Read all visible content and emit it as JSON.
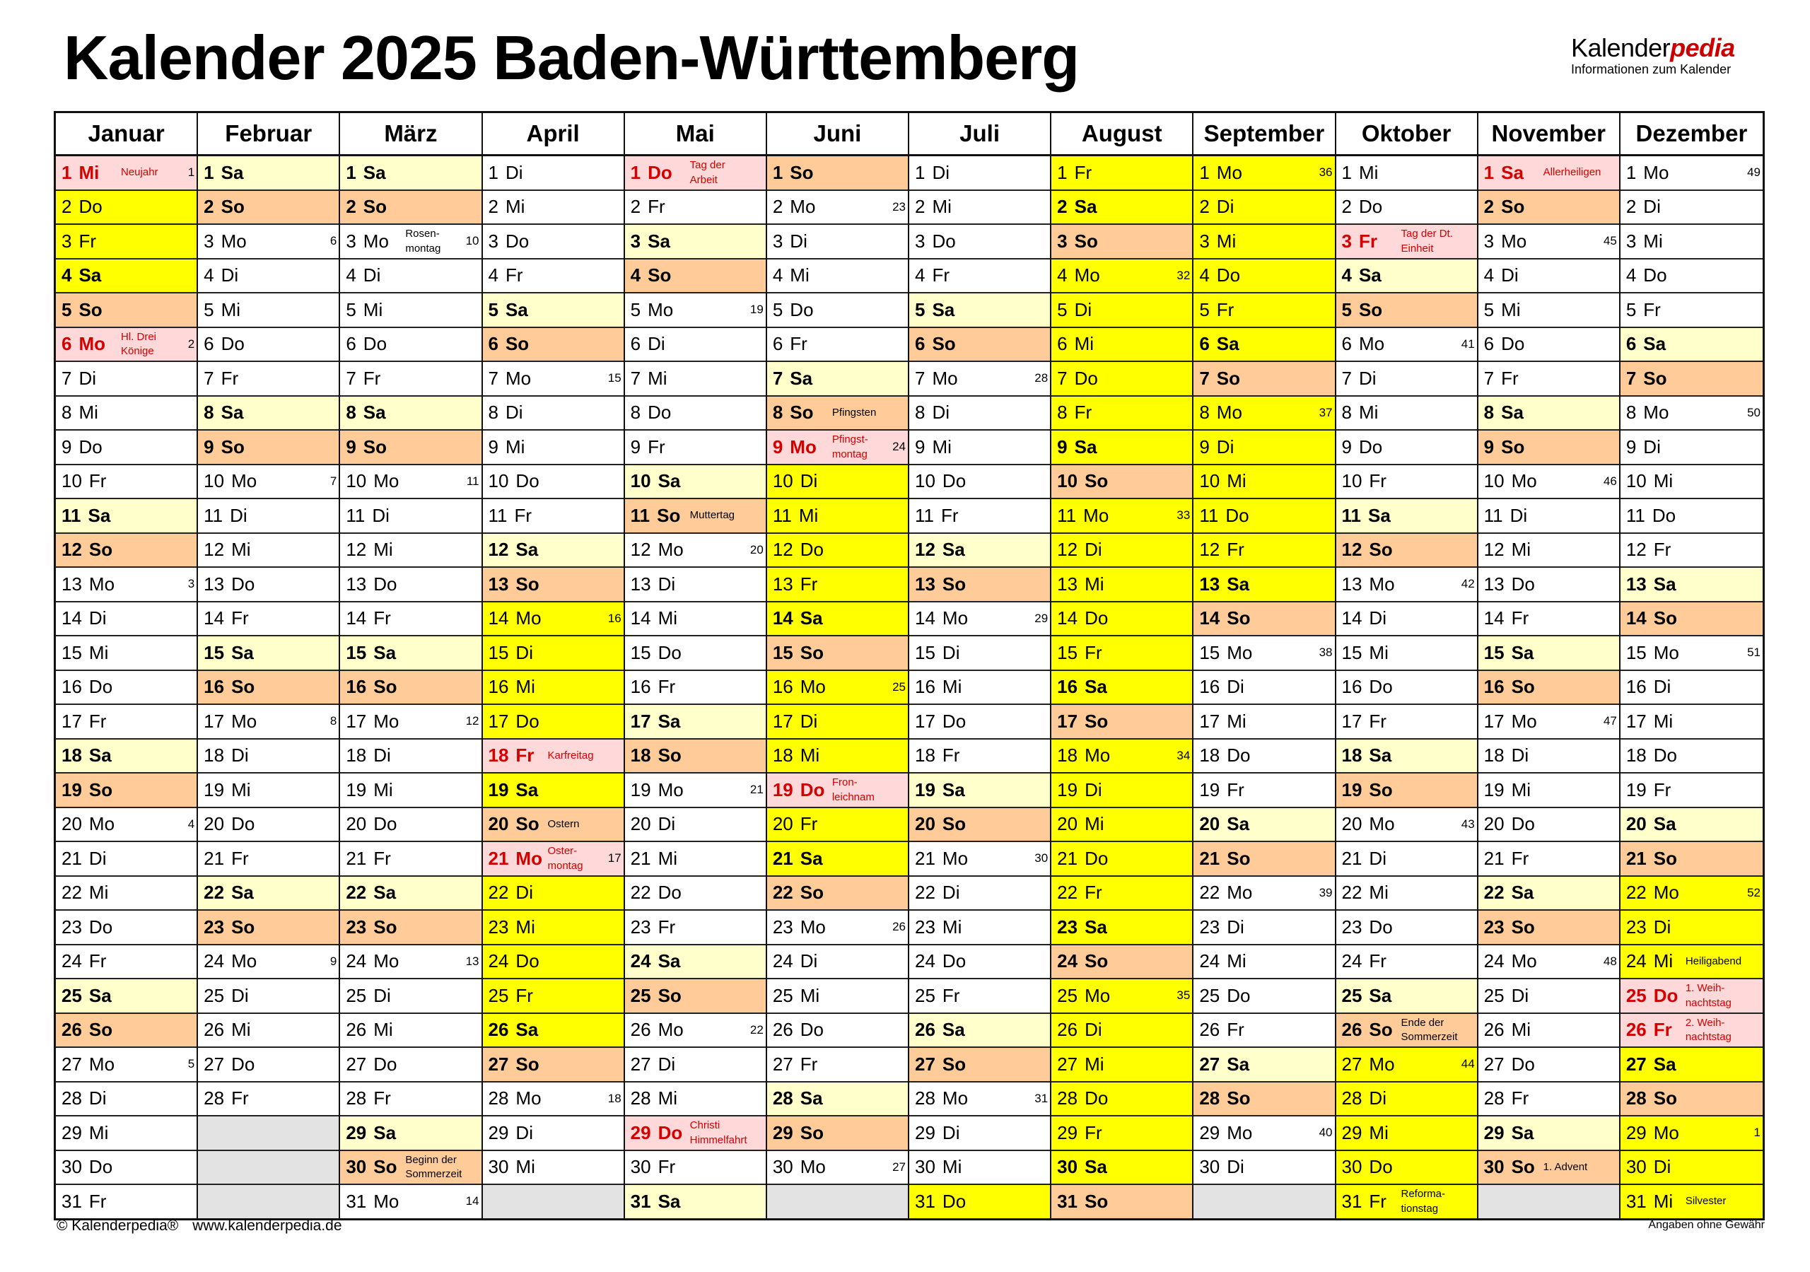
{
  "title": "Kalender 2025 Baden-Württemberg",
  "logo": {
    "main": "Kalender",
    "accent": "pedia",
    "subtitle": "Informationen zum Kalender"
  },
  "colors": {
    "weekday": "#ffffff",
    "saturday": "#ffffcc",
    "sunday": "#ffcc99",
    "holiday": "#ffd9d9",
    "holiday_text": "#d40000",
    "school_holiday": "#ffff00",
    "empty": "#e3e3e3"
  },
  "months": [
    {
      "name": "Januar",
      "days": [
        "1 Mi",
        "2 Do",
        "3 Fr",
        "4 Sa",
        "5 So",
        "6 Mo",
        "7 Di",
        "8 Mi",
        "9 Do",
        "10 Fr",
        "11 Sa",
        "12 So",
        "13 Mo",
        "14 Di",
        "15 Mi",
        "16 Do",
        "17 Fr",
        "18 Sa",
        "19 So",
        "20 Mo",
        "21 Di",
        "22 Mi",
        "23 Do",
        "24 Fr",
        "25 Sa",
        "26 So",
        "27 Mo",
        "28 Di",
        "29 Mi",
        "30 Do",
        "31 Fr"
      ],
      "kw": {
        "1": "1",
        "6": "2",
        "13": "3",
        "20": "4",
        "27": "5"
      },
      "notes": {
        "1": "Neujahr",
        "6": "Hl. Drei\nKönige"
      },
      "holidays": [
        1,
        6
      ],
      "vacation": [
        2,
        3,
        4
      ]
    },
    {
      "name": "Februar",
      "days": [
        "1 Sa",
        "2 So",
        "3 Mo",
        "4 Di",
        "5 Mi",
        "6 Do",
        "7 Fr",
        "8 Sa",
        "9 So",
        "10 Mo",
        "11 Di",
        "12 Mi",
        "13 Do",
        "14 Fr",
        "15 Sa",
        "16 So",
        "17 Mo",
        "18 Di",
        "19 Mi",
        "20 Do",
        "21 Fr",
        "22 Sa",
        "23 So",
        "24 Mo",
        "25 Di",
        "26 Mi",
        "27 Do",
        "28 Fr"
      ],
      "kw": {
        "3": "6",
        "10": "7",
        "17": "8",
        "24": "9"
      },
      "notes": {},
      "holidays": [],
      "vacation": []
    },
    {
      "name": "März",
      "days": [
        "1 Sa",
        "2 So",
        "3 Mo",
        "4 Di",
        "5 Mi",
        "6 Do",
        "7 Fr",
        "8 Sa",
        "9 So",
        "10 Mo",
        "11 Di",
        "12 Mi",
        "13 Do",
        "14 Fr",
        "15 Sa",
        "16 So",
        "17 Mo",
        "18 Di",
        "19 Mi",
        "20 Do",
        "21 Fr",
        "22 Sa",
        "23 So",
        "24 Mo",
        "25 Di",
        "26 Mi",
        "27 Do",
        "28 Fr",
        "29 Sa",
        "30 So",
        "31 Mo"
      ],
      "kw": {
        "3": "10",
        "10": "11",
        "17": "12",
        "24": "13",
        "31": "14"
      },
      "notes": {
        "3": "Rosen-\nmontag",
        "30": "Beginn der\nSommerzeit"
      },
      "holidays": [],
      "vacation": []
    },
    {
      "name": "April",
      "days": [
        "1 Di",
        "2 Mi",
        "3 Do",
        "4 Fr",
        "5 Sa",
        "6 So",
        "7 Mo",
        "8 Di",
        "9 Mi",
        "10 Do",
        "11 Fr",
        "12 Sa",
        "13 So",
        "14 Mo",
        "15 Di",
        "16 Mi",
        "17 Do",
        "18 Fr",
        "19 Sa",
        "20 So",
        "21 Mo",
        "22 Di",
        "23 Mi",
        "24 Do",
        "25 Fr",
        "26 Sa",
        "27 So",
        "28 Mo",
        "29 Di",
        "30 Mi"
      ],
      "kw": {
        "7": "15",
        "14": "16",
        "21": "17",
        "28": "18"
      },
      "notes": {
        "18": "Karfreitag",
        "20": "Ostern",
        "21": "Oster-\nmontag"
      },
      "holidays": [
        18,
        21
      ],
      "vacation": [
        14,
        15,
        16,
        17,
        19,
        20,
        22,
        23,
        24,
        25,
        26
      ]
    },
    {
      "name": "Mai",
      "days": [
        "1 Do",
        "2 Fr",
        "3 Sa",
        "4 So",
        "5 Mo",
        "6 Di",
        "7 Mi",
        "8 Do",
        "9 Fr",
        "10 Sa",
        "11 So",
        "12 Mo",
        "13 Di",
        "14 Mi",
        "15 Do",
        "16 Fr",
        "17 Sa",
        "18 So",
        "19 Mo",
        "20 Di",
        "21 Mi",
        "22 Do",
        "23 Fr",
        "24 Sa",
        "25 So",
        "26 Mo",
        "27 Di",
        "28 Mi",
        "29 Do",
        "30 Fr",
        "31 Sa"
      ],
      "kw": {
        "5": "19",
        "12": "20",
        "19": "21",
        "26": "22"
      },
      "notes": {
        "1": "Tag der\nArbeit",
        "11": "Muttertag",
        "29": "Christi\nHimmelfahrt"
      },
      "holidays": [
        1,
        29
      ],
      "vacation": []
    },
    {
      "name": "Juni",
      "days": [
        "1 So",
        "2 Mo",
        "3 Di",
        "4 Mi",
        "5 Do",
        "6 Fr",
        "7 Sa",
        "8 So",
        "9 Mo",
        "10 Di",
        "11 Mi",
        "12 Do",
        "13 Fr",
        "14 Sa",
        "15 So",
        "16 Mo",
        "17 Di",
        "18 Mi",
        "19 Do",
        "20 Fr",
        "21 Sa",
        "22 So",
        "23 Mo",
        "24 Di",
        "25 Mi",
        "26 Do",
        "27 Fr",
        "28 Sa",
        "29 So",
        "30 Mo"
      ],
      "kw": {
        "2": "23",
        "9": "24",
        "16": "25",
        "23": "26",
        "30": "27"
      },
      "notes": {
        "8": "Pfingsten",
        "9": "Pfingst-\nmontag",
        "19": "Fron-\nleichnam"
      },
      "holidays": [
        9,
        19
      ],
      "vacation": [
        10,
        11,
        12,
        13,
        14,
        15,
        16,
        17,
        18,
        20,
        21
      ]
    },
    {
      "name": "Juli",
      "days": [
        "1 Di",
        "2 Mi",
        "3 Do",
        "4 Fr",
        "5 Sa",
        "6 So",
        "7 Mo",
        "8 Di",
        "9 Mi",
        "10 Do",
        "11 Fr",
        "12 Sa",
        "13 So",
        "14 Mo",
        "15 Di",
        "16 Mi",
        "17 Do",
        "18 Fr",
        "19 Sa",
        "20 So",
        "21 Mo",
        "22 Di",
        "23 Mi",
        "24 Do",
        "25 Fr",
        "26 Sa",
        "27 So",
        "28 Mo",
        "29 Di",
        "30 Mi",
        "31 Do"
      ],
      "kw": {
        "7": "28",
        "14": "29",
        "21": "30",
        "28": "31"
      },
      "notes": {},
      "holidays": [],
      "vacation": [
        31
      ]
    },
    {
      "name": "August",
      "days": [
        "1 Fr",
        "2 Sa",
        "3 So",
        "4 Mo",
        "5 Di",
        "6 Mi",
        "7 Do",
        "8 Fr",
        "9 Sa",
        "10 So",
        "11 Mo",
        "12 Di",
        "13 Mi",
        "14 Do",
        "15 Fr",
        "16 Sa",
        "17 So",
        "18 Mo",
        "19 Di",
        "20 Mi",
        "21 Do",
        "22 Fr",
        "23 Sa",
        "24 So",
        "25 Mo",
        "26 Di",
        "27 Mi",
        "28 Do",
        "29 Fr",
        "30 Sa",
        "31 So"
      ],
      "kw": {
        "4": "32",
        "11": "33",
        "18": "34",
        "25": "35"
      },
      "notes": {},
      "holidays": [],
      "vacation": [
        1,
        2,
        3,
        4,
        5,
        6,
        7,
        8,
        9,
        10,
        11,
        12,
        13,
        14,
        15,
        16,
        17,
        18,
        19,
        20,
        21,
        22,
        23,
        24,
        25,
        26,
        27,
        28,
        29,
        30,
        31
      ]
    },
    {
      "name": "September",
      "days": [
        "1 Mo",
        "2 Di",
        "3 Mi",
        "4 Do",
        "5 Fr",
        "6 Sa",
        "7 So",
        "8 Mo",
        "9 Di",
        "10 Mi",
        "11 Do",
        "12 Fr",
        "13 Sa",
        "14 So",
        "15 Mo",
        "16 Di",
        "17 Mi",
        "18 Do",
        "19 Fr",
        "20 Sa",
        "21 So",
        "22 Mo",
        "23 Di",
        "24 Mi",
        "25 Do",
        "26 Fr",
        "27 Sa",
        "28 So",
        "29 Mo",
        "30 Di"
      ],
      "kw": {
        "1": "36",
        "8": "37",
        "15": "38",
        "22": "39",
        "29": "40"
      },
      "notes": {},
      "holidays": [],
      "vacation": [
        1,
        2,
        3,
        4,
        5,
        6,
        7,
        8,
        9,
        10,
        11,
        12,
        13
      ]
    },
    {
      "name": "Oktober",
      "days": [
        "1 Mi",
        "2 Do",
        "3 Fr",
        "4 Sa",
        "5 So",
        "6 Mo",
        "7 Di",
        "8 Mi",
        "9 Do",
        "10 Fr",
        "11 Sa",
        "12 So",
        "13 Mo",
        "14 Di",
        "15 Mi",
        "16 Do",
        "17 Fr",
        "18 Sa",
        "19 So",
        "20 Mo",
        "21 Di",
        "22 Mi",
        "23 Do",
        "24 Fr",
        "25 Sa",
        "26 So",
        "27 Mo",
        "28 Di",
        "29 Mi",
        "30 Do",
        "31 Fr"
      ],
      "kw": {
        "6": "41",
        "13": "42",
        "20": "43",
        "27": "44"
      },
      "notes": {
        "3": "Tag der Dt.\nEinheit",
        "26": "Ende der\nSommerzeit",
        "31": "Reforma-\ntionstag"
      },
      "holidays": [
        3
      ],
      "vacation": [
        27,
        28,
        29,
        30,
        31
      ]
    },
    {
      "name": "November",
      "days": [
        "1 Sa",
        "2 So",
        "3 Mo",
        "4 Di",
        "5 Mi",
        "6 Do",
        "7 Fr",
        "8 Sa",
        "9 So",
        "10 Mo",
        "11 Di",
        "12 Mi",
        "13 Do",
        "14 Fr",
        "15 Sa",
        "16 So",
        "17 Mo",
        "18 Di",
        "19 Mi",
        "20 Do",
        "21 Fr",
        "22 Sa",
        "23 So",
        "24 Mo",
        "25 Di",
        "26 Mi",
        "27 Do",
        "28 Fr",
        "29 Sa",
        "30 So"
      ],
      "kw": {
        "3": "45",
        "10": "46",
        "17": "47",
        "24": "48"
      },
      "notes": {
        "1": "Allerheiligen",
        "30": "1. Advent"
      },
      "holidays": [
        1
      ],
      "vacation": []
    },
    {
      "name": "Dezember",
      "days": [
        "1 Mo",
        "2 Di",
        "3 Mi",
        "4 Do",
        "5 Fr",
        "6 Sa",
        "7 So",
        "8 Mo",
        "9 Di",
        "10 Mi",
        "11 Do",
        "12 Fr",
        "13 Sa",
        "14 So",
        "15 Mo",
        "16 Di",
        "17 Mi",
        "18 Do",
        "19 Fr",
        "20 Sa",
        "21 So",
        "22 Mo",
        "23 Di",
        "24 Mi",
        "25 Do",
        "26 Fr",
        "27 Sa",
        "28 So",
        "29 Mo",
        "30 Di",
        "31 Mi"
      ],
      "kw": {
        "1": "49",
        "8": "50",
        "15": "51",
        "22": "52",
        "29": "1"
      },
      "notes": {
        "24": "Heiligabend",
        "25": "1. Weih-\nnachtstag",
        "26": "2. Weih-\nnachtstag",
        "31": "Silvester"
      },
      "holidays": [
        25,
        26
      ],
      "vacation": [
        22,
        23,
        24,
        27,
        28,
        29,
        30,
        31
      ]
    }
  ],
  "footer": {
    "copyright": "© Kalenderpedia®",
    "url": "www.kalenderpedia.de",
    "disclaimer": "Angaben ohne Gewähr"
  }
}
